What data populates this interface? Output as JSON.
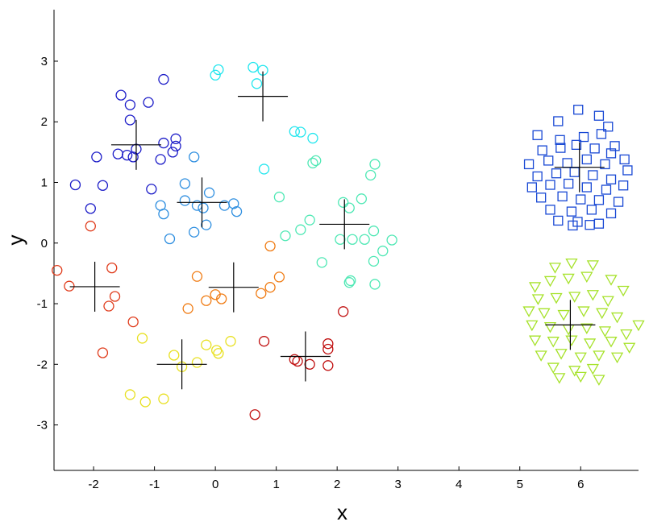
{
  "chart_data": {
    "type": "scatter",
    "xlabel": "x",
    "ylabel": "y",
    "xlim": [
      -2.65,
      6.95
    ],
    "ylim": [
      -3.75,
      3.85
    ],
    "xticks": [
      -2,
      -1,
      0,
      1,
      2,
      3,
      4,
      5,
      6
    ],
    "yticks": [
      -3,
      -2,
      -1,
      0,
      1,
      2,
      3
    ],
    "grid": false,
    "groups": [
      {
        "color": "#1c1cc8",
        "marker": "circle",
        "centroid": [
          -1.3,
          1.62
        ],
        "points": [
          [
            -0.85,
            2.7
          ],
          [
            -1.55,
            2.44
          ],
          [
            -1.1,
            2.32
          ],
          [
            -1.4,
            2.28
          ],
          [
            -1.4,
            2.03
          ],
          [
            -1.3,
            1.55
          ],
          [
            -1.45,
            1.45
          ],
          [
            -1.35,
            1.42
          ],
          [
            -1.6,
            1.47
          ],
          [
            -1.95,
            1.42
          ],
          [
            -0.85,
            1.65
          ],
          [
            -0.65,
            1.72
          ],
          [
            -0.65,
            1.6
          ],
          [
            -0.7,
            1.5
          ],
          [
            -0.9,
            1.38
          ],
          [
            -2.3,
            0.96
          ],
          [
            -1.85,
            0.95
          ],
          [
            -2.05,
            0.57
          ],
          [
            -1.05,
            0.89
          ]
        ]
      },
      {
        "color": "#2f8fe0",
        "marker": "circle",
        "centroid": [
          -0.22,
          0.67
        ],
        "points": [
          [
            -0.35,
            1.42
          ],
          [
            -0.5,
            0.98
          ],
          [
            -0.1,
            0.83
          ],
          [
            -0.5,
            0.7
          ],
          [
            -0.3,
            0.62
          ],
          [
            -0.2,
            0.58
          ],
          [
            0.15,
            0.62
          ],
          [
            0.3,
            0.65
          ],
          [
            0.35,
            0.52
          ],
          [
            -0.15,
            0.3
          ],
          [
            -0.9,
            0.62
          ],
          [
            -0.85,
            0.48
          ],
          [
            -0.75,
            0.07
          ],
          [
            -0.35,
            0.18
          ]
        ]
      },
      {
        "color": "#22e6ee",
        "marker": "circle",
        "centroid": [
          0.78,
          2.42
        ],
        "points": [
          [
            0.0,
            2.77
          ],
          [
            0.05,
            2.86
          ],
          [
            0.62,
            2.9
          ],
          [
            0.78,
            2.85
          ],
          [
            0.68,
            2.63
          ],
          [
            1.3,
            1.84
          ],
          [
            1.4,
            1.83
          ],
          [
            1.6,
            1.73
          ],
          [
            0.8,
            1.22
          ]
        ]
      },
      {
        "color": "#4ee8b4",
        "marker": "circle",
        "centroid": [
          2.12,
          0.31
        ],
        "points": [
          [
            1.6,
            1.32
          ],
          [
            1.65,
            1.36
          ],
          [
            1.05,
            0.76
          ],
          [
            1.55,
            0.38
          ],
          [
            1.4,
            0.22
          ],
          [
            1.15,
            0.12
          ],
          [
            2.1,
            0.67
          ],
          [
            2.2,
            0.58
          ],
          [
            2.4,
            0.73
          ],
          [
            2.55,
            1.12
          ],
          [
            2.62,
            1.3
          ],
          [
            2.6,
            0.2
          ],
          [
            2.45,
            0.06
          ],
          [
            2.25,
            0.06
          ],
          [
            2.05,
            0.06
          ],
          [
            2.9,
            0.05
          ],
          [
            2.75,
            -0.13
          ],
          [
            2.6,
            -0.3
          ],
          [
            1.75,
            -0.32
          ],
          [
            2.22,
            -0.62
          ],
          [
            2.2,
            -0.65
          ],
          [
            2.62,
            -0.68
          ]
        ]
      },
      {
        "color": "#f07c14",
        "marker": "circle",
        "centroid": [
          0.3,
          -0.73
        ],
        "points": [
          [
            0.9,
            -0.05
          ],
          [
            1.05,
            -0.56
          ],
          [
            -0.3,
            -0.55
          ],
          [
            0.9,
            -0.73
          ],
          [
            0.75,
            -0.83
          ],
          [
            0.0,
            -0.85
          ],
          [
            0.1,
            -0.92
          ],
          [
            -0.15,
            -0.95
          ],
          [
            -0.45,
            -1.08
          ]
        ]
      },
      {
        "color": "#e8e020",
        "marker": "circle",
        "centroid": [
          -0.55,
          -2.0
        ],
        "points": [
          [
            -1.2,
            -1.57
          ],
          [
            -0.68,
            -1.85
          ],
          [
            -0.15,
            -1.68
          ],
          [
            0.02,
            -1.77
          ],
          [
            0.05,
            -1.82
          ],
          [
            0.25,
            -1.62
          ],
          [
            -0.55,
            -2.04
          ],
          [
            -0.3,
            -1.97
          ],
          [
            -1.4,
            -2.5
          ],
          [
            -1.15,
            -2.62
          ],
          [
            -0.85,
            -2.57
          ]
        ]
      },
      {
        "color": "#e03c1c",
        "marker": "circle",
        "centroid": [
          -1.98,
          -0.72
        ],
        "points": [
          [
            -2.6,
            -0.45
          ],
          [
            -2.4,
            -0.71
          ],
          [
            -1.7,
            -0.41
          ],
          [
            -1.65,
            -0.88
          ],
          [
            -1.75,
            -1.04
          ],
          [
            -1.35,
            -1.3
          ],
          [
            -2.05,
            0.28
          ],
          [
            -1.85,
            -1.81
          ]
        ]
      },
      {
        "color": "#c00e0e",
        "marker": "circle",
        "centroid": [
          1.48,
          -1.87
        ],
        "points": [
          [
            2.1,
            -1.13
          ],
          [
            0.8,
            -1.62
          ],
          [
            1.3,
            -1.92
          ],
          [
            1.35,
            -1.95
          ],
          [
            1.55,
            -2.0
          ],
          [
            1.85,
            -1.66
          ],
          [
            1.85,
            -1.75
          ],
          [
            1.85,
            -2.02
          ],
          [
            0.65,
            -2.83
          ]
        ]
      },
      {
        "color": "#1747d4",
        "marker": "square",
        "centroid": [
          5.98,
          1.25
        ],
        "points": [
          [
            5.63,
            2.01
          ],
          [
            5.96,
            2.2
          ],
          [
            6.3,
            2.1
          ],
          [
            6.45,
            1.92
          ],
          [
            5.29,
            1.78
          ],
          [
            5.66,
            1.7
          ],
          [
            6.05,
            1.75
          ],
          [
            6.34,
            1.8
          ],
          [
            6.56,
            1.6
          ],
          [
            5.37,
            1.53
          ],
          [
            5.67,
            1.57
          ],
          [
            5.93,
            1.62
          ],
          [
            6.23,
            1.56
          ],
          [
            6.5,
            1.48
          ],
          [
            6.72,
            1.38
          ],
          [
            5.15,
            1.3
          ],
          [
            5.47,
            1.36
          ],
          [
            5.78,
            1.32
          ],
          [
            6.1,
            1.38
          ],
          [
            6.4,
            1.3
          ],
          [
            6.77,
            1.2
          ],
          [
            5.29,
            1.1
          ],
          [
            5.6,
            1.15
          ],
          [
            5.9,
            1.17
          ],
          [
            6.2,
            1.12
          ],
          [
            6.5,
            1.05
          ],
          [
            5.2,
            0.92
          ],
          [
            5.5,
            0.96
          ],
          [
            5.8,
            0.98
          ],
          [
            6.1,
            0.92
          ],
          [
            6.42,
            0.88
          ],
          [
            6.7,
            0.95
          ],
          [
            5.35,
            0.75
          ],
          [
            5.7,
            0.77
          ],
          [
            6.0,
            0.72
          ],
          [
            6.3,
            0.71
          ],
          [
            6.62,
            0.68
          ],
          [
            5.5,
            0.55
          ],
          [
            5.85,
            0.52
          ],
          [
            6.18,
            0.55
          ],
          [
            6.5,
            0.49
          ],
          [
            5.63,
            0.37
          ],
          [
            5.95,
            0.35
          ],
          [
            6.3,
            0.32
          ],
          [
            5.87,
            0.29
          ],
          [
            6.15,
            0.3
          ]
        ]
      },
      {
        "color": "#a6e22a",
        "marker": "triangle",
        "centroid": [
          5.83,
          -1.35
        ],
        "points": [
          [
            5.58,
            -0.4
          ],
          [
            5.85,
            -0.33
          ],
          [
            6.2,
            -0.36
          ],
          [
            5.25,
            -0.72
          ],
          [
            5.5,
            -0.62
          ],
          [
            5.8,
            -0.58
          ],
          [
            6.1,
            -0.55
          ],
          [
            6.5,
            -0.6
          ],
          [
            6.7,
            -0.78
          ],
          [
            5.3,
            -0.92
          ],
          [
            5.6,
            -0.9
          ],
          [
            5.9,
            -0.88
          ],
          [
            6.2,
            -0.85
          ],
          [
            6.45,
            -0.95
          ],
          [
            5.15,
            -1.12
          ],
          [
            5.4,
            -1.15
          ],
          [
            5.72,
            -1.18
          ],
          [
            6.05,
            -1.12
          ],
          [
            6.35,
            -1.15
          ],
          [
            6.6,
            -1.22
          ],
          [
            6.95,
            -1.35
          ],
          [
            5.2,
            -1.35
          ],
          [
            5.5,
            -1.38
          ],
          [
            5.8,
            -1.42
          ],
          [
            6.1,
            -1.4
          ],
          [
            6.4,
            -1.45
          ],
          [
            6.75,
            -1.5
          ],
          [
            5.25,
            -1.6
          ],
          [
            5.55,
            -1.62
          ],
          [
            5.85,
            -1.6
          ],
          [
            6.15,
            -1.65
          ],
          [
            6.5,
            -1.62
          ],
          [
            6.8,
            -1.72
          ],
          [
            5.35,
            -1.85
          ],
          [
            5.68,
            -1.82
          ],
          [
            6.0,
            -1.88
          ],
          [
            6.3,
            -1.85
          ],
          [
            6.6,
            -1.88
          ],
          [
            5.55,
            -2.05
          ],
          [
            5.9,
            -2.1
          ],
          [
            6.2,
            -2.07
          ],
          [
            5.65,
            -2.22
          ],
          [
            6.0,
            -2.2
          ],
          [
            6.3,
            -2.25
          ]
        ]
      }
    ]
  }
}
